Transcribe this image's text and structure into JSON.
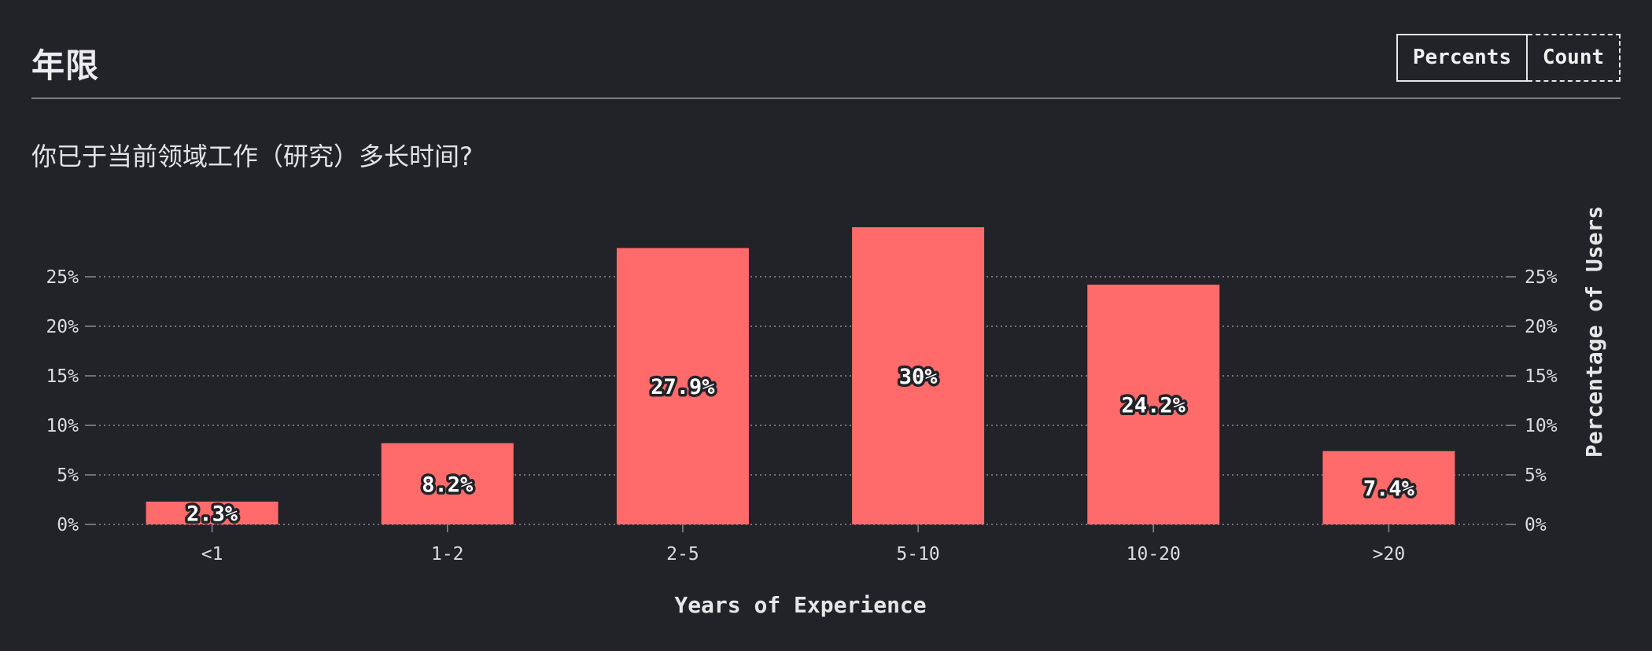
{
  "header": {
    "title": "年限",
    "toggle_percents": "Percents",
    "toggle_count": "Count"
  },
  "question": "你已于当前领域工作（研究）多长时间?",
  "colors": {
    "background": "#222328",
    "bar": "#ff6b6b",
    "grid": "#8a8c91",
    "text": "#e6e6e8"
  },
  "chart_data": {
    "type": "bar",
    "categories": [
      "<1",
      "1-2",
      "2-5",
      "5-10",
      "10-20",
      ">20"
    ],
    "values": [
      2.3,
      8.2,
      27.9,
      30,
      24.2,
      7.4
    ],
    "value_labels": [
      "2.3%",
      "8.2%",
      "27.9%",
      "30%",
      "24.2%",
      "7.4%"
    ],
    "xlabel": "Years of Experience",
    "ylabel": "Percentage of Users",
    "yticks": [
      0,
      5,
      10,
      15,
      20,
      25
    ],
    "ytick_labels": [
      "0%",
      "5%",
      "10%",
      "15%",
      "20%",
      "25%"
    ],
    "ylim": [
      0,
      30
    ],
    "grid": true,
    "y_axis_both_sides": true
  }
}
